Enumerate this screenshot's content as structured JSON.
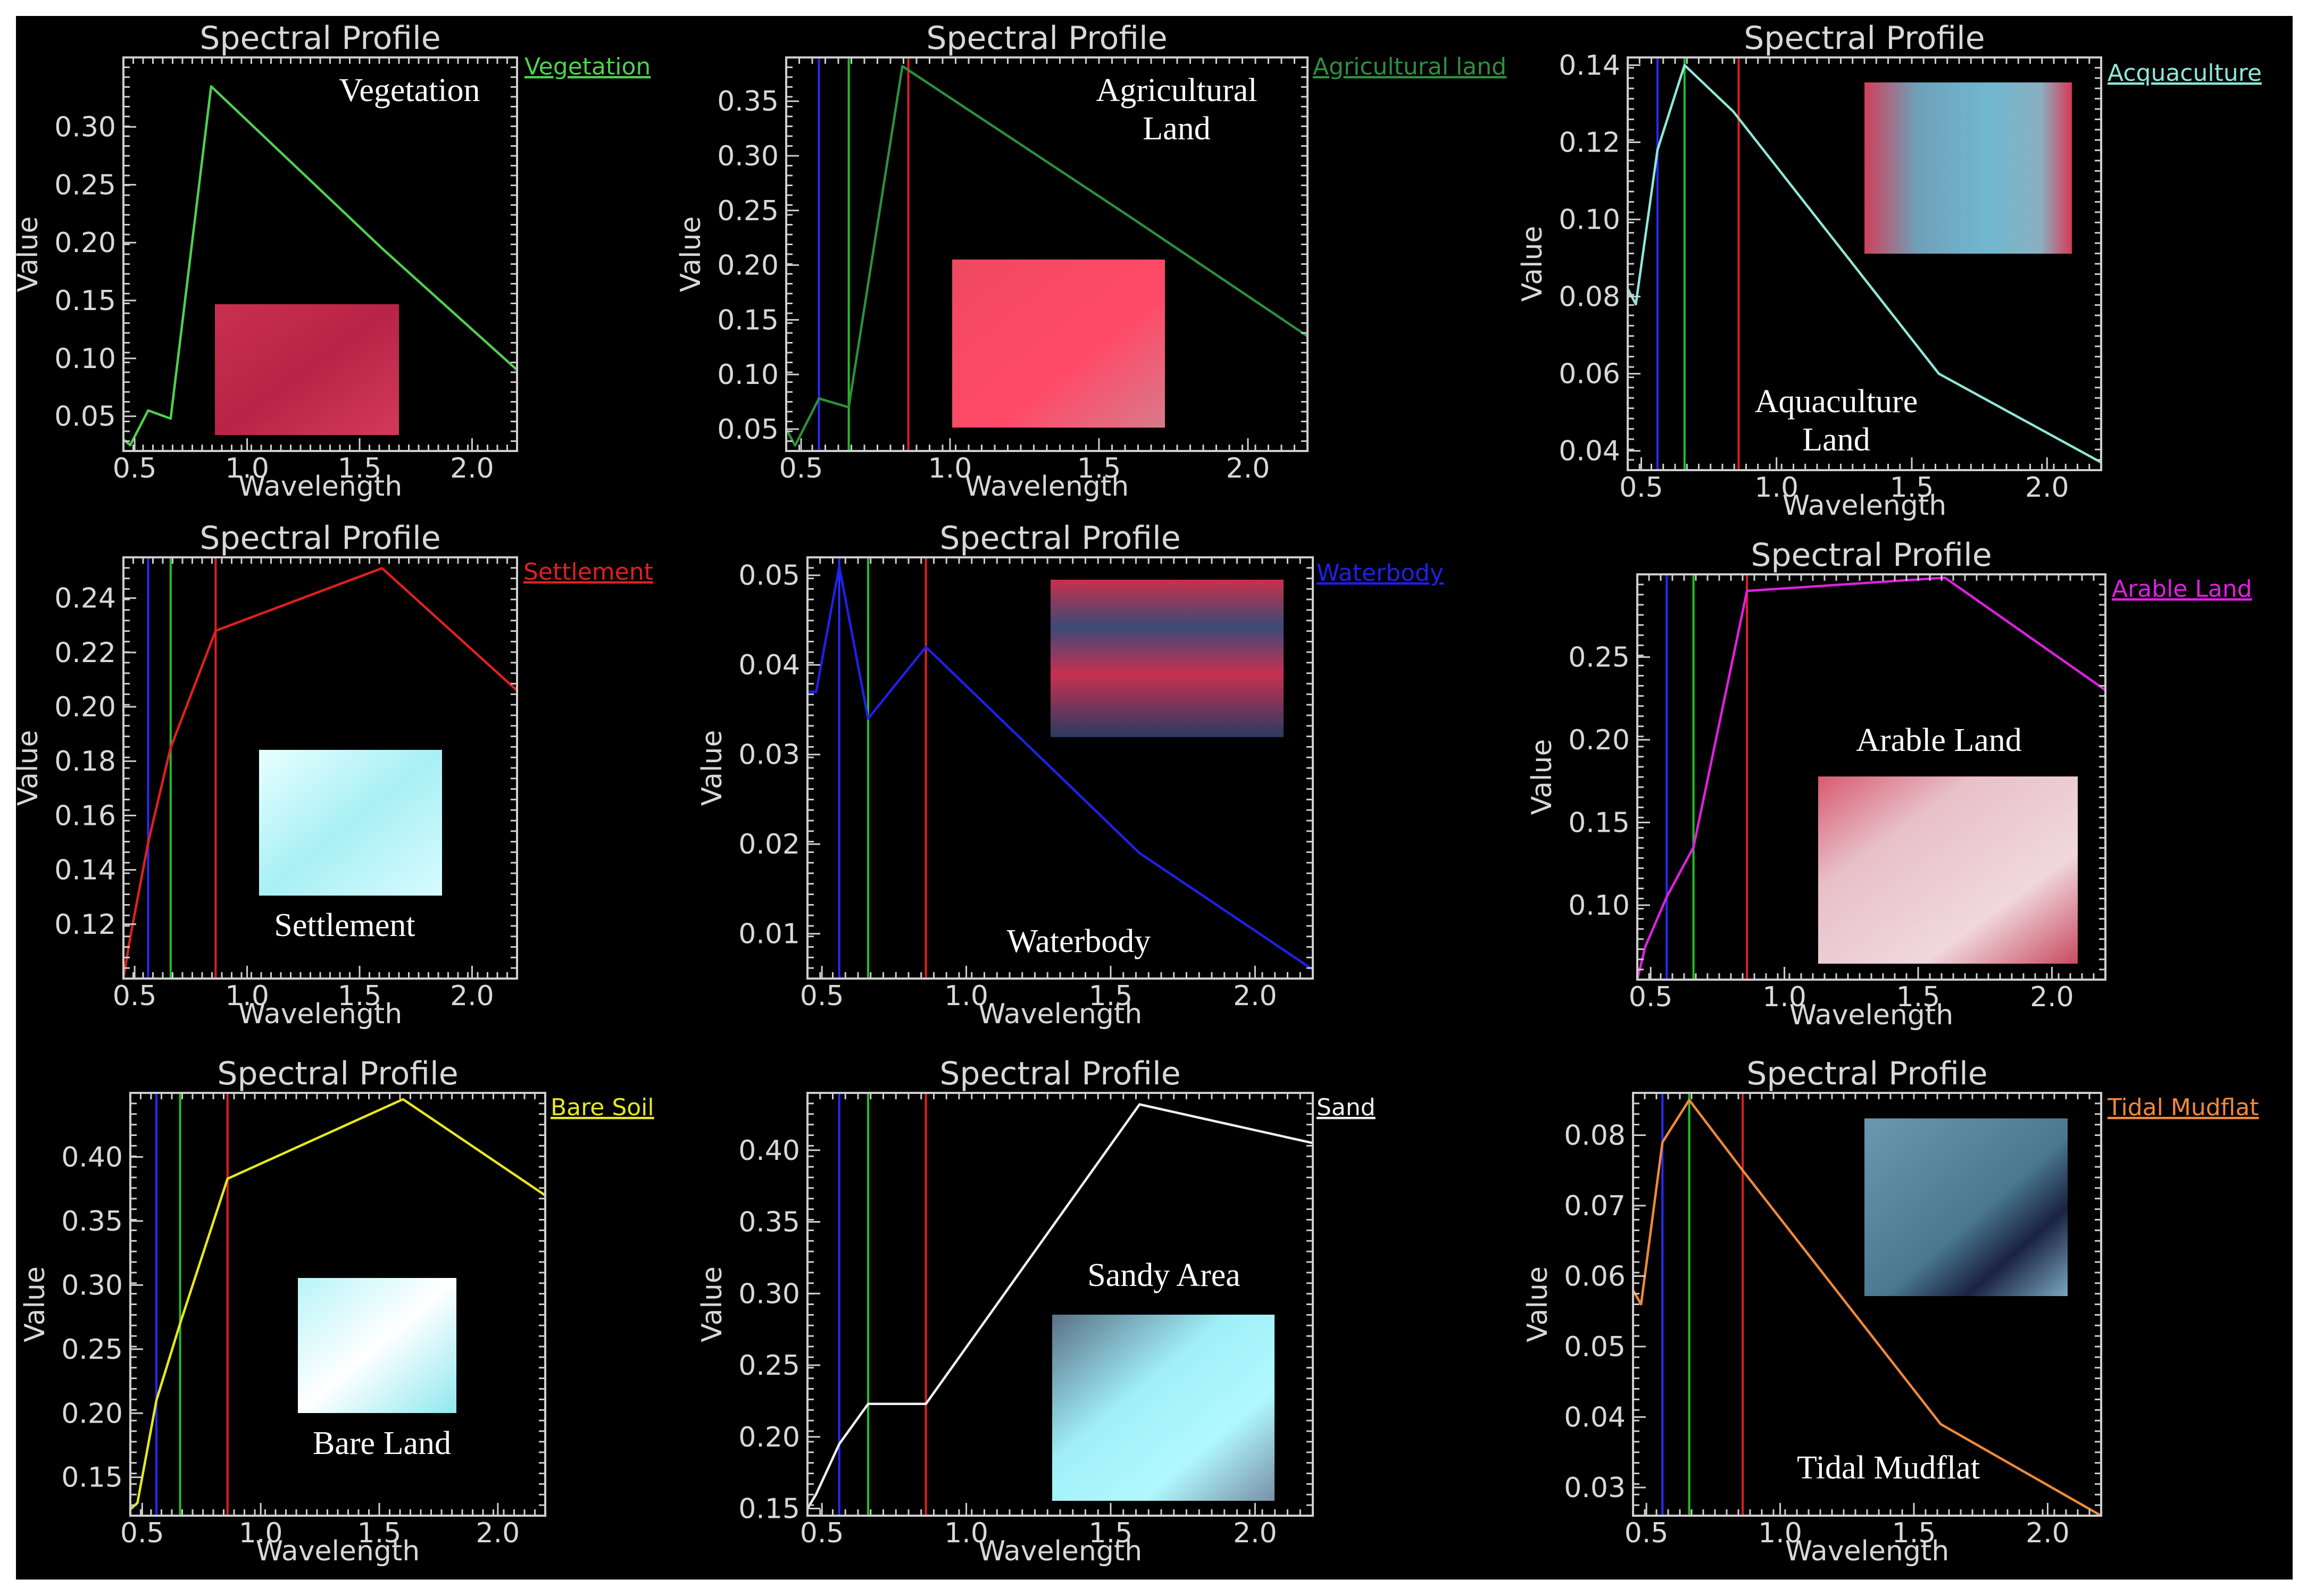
{
  "chart_data": [
    {
      "type": "line",
      "title": "Spectral Profile",
      "xlabel": "Wavelength",
      "ylabel": "Value",
      "xlim": [
        0.45,
        2.2
      ],
      "ylim": [
        0.02,
        0.36
      ],
      "xticks": [
        "0.5",
        "1.0",
        "1.5",
        "2.0"
      ],
      "yticks": [
        "0.05",
        "0.10",
        "0.15",
        "0.20",
        "0.25",
        "0.30"
      ],
      "series": [
        {
          "name": "Vegetation",
          "color": "#4fd14f",
          "x": [
            0.45,
            0.48,
            0.56,
            0.66,
            0.84,
            1.6,
            2.2
          ],
          "y": [
            0.03,
            0.025,
            0.055,
            0.048,
            0.335,
            0.195,
            0.09
          ]
        }
      ],
      "band_lines": [],
      "annotation": [
        "Vegetation"
      ],
      "thumbnail": "red-vegetation-patch"
    },
    {
      "type": "line",
      "title": "Spectral Profile",
      "xlabel": "Wavelength",
      "ylabel": "Value",
      "xlim": [
        0.45,
        2.2
      ],
      "ylim": [
        0.03,
        0.39
      ],
      "xticks": [
        "0.5",
        "1.0",
        "1.5",
        "2.0"
      ],
      "yticks": [
        "0.05",
        "0.10",
        "0.15",
        "0.20",
        "0.25",
        "0.30",
        "0.35"
      ],
      "series": [
        {
          "name": "Agricultural land",
          "color": "#2f8f3f",
          "x": [
            0.45,
            0.48,
            0.56,
            0.66,
            0.84,
            1.6,
            2.2
          ],
          "y": [
            0.05,
            0.035,
            0.078,
            0.07,
            0.382,
            0.245,
            0.135
          ]
        }
      ],
      "band_lines": [
        0.56,
        0.66,
        0.86
      ],
      "annotation": [
        "Agricultural",
        "Land"
      ],
      "thumbnail": "pink-agricultural-patch"
    },
    {
      "type": "line",
      "title": "Spectral Profile",
      "xlabel": "Wavelength",
      "ylabel": "Value",
      "xlim": [
        0.45,
        2.2
      ],
      "ylim": [
        0.035,
        0.142
      ],
      "xticks": [
        "0.5",
        "1.0",
        "1.5",
        "2.0"
      ],
      "yticks": [
        "0.04",
        "0.06",
        "0.08",
        "0.10",
        "0.12",
        "0.14"
      ],
      "series": [
        {
          "name": "Acquaculture",
          "color": "#8fe8d8",
          "x": [
            0.45,
            0.48,
            0.56,
            0.66,
            0.84,
            1.6,
            2.2
          ],
          "y": [
            0.082,
            0.078,
            0.118,
            0.14,
            0.128,
            0.06,
            0.037
          ]
        }
      ],
      "band_lines": [
        0.56,
        0.66,
        0.86
      ],
      "annotation": [
        "Aquaculture",
        "Land"
      ],
      "thumbnail": "aquaculture-patch"
    },
    {
      "type": "line",
      "title": "Spectral Profile",
      "xlabel": "Wavelength",
      "ylabel": "Value",
      "xlim": [
        0.45,
        2.2
      ],
      "ylim": [
        0.1,
        0.255
      ],
      "xticks": [
        "0.5",
        "1.0",
        "1.5",
        "2.0"
      ],
      "yticks": [
        "0.12",
        "0.14",
        "0.16",
        "0.18",
        "0.20",
        "0.22",
        "0.24"
      ],
      "series": [
        {
          "name": "Settlement",
          "color": "#e02020",
          "x": [
            0.45,
            0.48,
            0.56,
            0.66,
            0.86,
            1.6,
            2.2
          ],
          "y": [
            0.1,
            0.115,
            0.15,
            0.185,
            0.228,
            0.251,
            0.206
          ]
        }
      ],
      "band_lines": [
        0.56,
        0.66,
        0.86
      ],
      "annotation": [
        "Settlement"
      ],
      "thumbnail": "settlement-patch"
    },
    {
      "type": "line",
      "title": "Spectral Profile",
      "xlabel": "Wavelength",
      "ylabel": "Value",
      "xlim": [
        0.45,
        2.2
      ],
      "ylim": [
        0.005,
        0.052
      ],
      "xticks": [
        "0.5",
        "1.0",
        "1.5",
        "2.0"
      ],
      "yticks": [
        "0.01",
        "0.02",
        "0.03",
        "0.04",
        "0.05"
      ],
      "series": [
        {
          "name": "Waterbody",
          "color": "#2020e8",
          "x": [
            0.45,
            0.48,
            0.56,
            0.66,
            0.86,
            1.6,
            2.2
          ],
          "y": [
            0.037,
            0.037,
            0.051,
            0.034,
            0.042,
            0.019,
            0.006
          ]
        }
      ],
      "band_lines": [
        0.56,
        0.66,
        0.86
      ],
      "annotation": [
        "Waterbody"
      ],
      "thumbnail": "waterbody-patch"
    },
    {
      "type": "line",
      "title": "Spectral Profile",
      "xlabel": "Wavelength",
      "ylabel": "Value",
      "xlim": [
        0.45,
        2.2
      ],
      "ylim": [
        0.055,
        0.3
      ],
      "xticks": [
        "0.5",
        "1.0",
        "1.5",
        "2.0"
      ],
      "yticks": [
        "0.10",
        "0.15",
        "0.20",
        "0.25"
      ],
      "series": [
        {
          "name": "Arable Land",
          "color": "#e020e0",
          "x": [
            0.45,
            0.48,
            0.56,
            0.66,
            0.86,
            1.6,
            2.2
          ],
          "y": [
            0.055,
            0.075,
            0.105,
            0.135,
            0.29,
            0.298,
            0.23
          ]
        }
      ],
      "band_lines": [
        0.56,
        0.66,
        0.86
      ],
      "annotation": [
        "Arable Land"
      ],
      "thumbnail": "arable-land-patch"
    },
    {
      "type": "line",
      "title": "Spectral Profile",
      "xlabel": "Wavelength",
      "ylabel": "Value",
      "xlim": [
        0.45,
        2.2
      ],
      "ylim": [
        0.12,
        0.45
      ],
      "xticks": [
        "0.5",
        "1.0",
        "1.5",
        "2.0"
      ],
      "yticks": [
        "0.15",
        "0.20",
        "0.25",
        "0.30",
        "0.35",
        "0.40"
      ],
      "series": [
        {
          "name": "Bare Soil",
          "color": "#e8e820",
          "x": [
            0.45,
            0.48,
            0.56,
            0.66,
            0.86,
            1.6,
            2.2
          ],
          "y": [
            0.125,
            0.13,
            0.21,
            0.27,
            0.383,
            0.445,
            0.37
          ]
        }
      ],
      "band_lines": [
        0.56,
        0.66,
        0.86
      ],
      "annotation": [
        "Bare Land"
      ],
      "thumbnail": "bare-land-patch"
    },
    {
      "type": "line",
      "title": "Spectral Profile",
      "xlabel": "Wavelength",
      "ylabel": "Value",
      "xlim": [
        0.45,
        2.2
      ],
      "ylim": [
        0.145,
        0.44
      ],
      "xticks": [
        "0.5",
        "1.0",
        "1.5",
        "2.0"
      ],
      "yticks": [
        "0.15",
        "0.20",
        "0.25",
        "0.30",
        "0.35",
        "0.40"
      ],
      "series": [
        {
          "name": "Sand",
          "color": "#f0f0f0",
          "x": [
            0.45,
            0.48,
            0.56,
            0.66,
            0.86,
            1.6,
            2.2
          ],
          "y": [
            0.15,
            0.16,
            0.195,
            0.223,
            0.223,
            0.432,
            0.405
          ]
        }
      ],
      "band_lines": [
        0.56,
        0.66,
        0.86
      ],
      "annotation": [
        "Sandy Area"
      ],
      "thumbnail": "sandy-area-patch"
    },
    {
      "type": "line",
      "title": "Spectral Profile",
      "xlabel": "Wavelength",
      "ylabel": "Value",
      "xlim": [
        0.45,
        2.2
      ],
      "ylim": [
        0.026,
        0.086
      ],
      "xticks": [
        "0.5",
        "1.0",
        "1.5",
        "2.0"
      ],
      "yticks": [
        "0.03",
        "0.04",
        "0.05",
        "0.06",
        "0.07",
        "0.08"
      ],
      "series": [
        {
          "name": "Tidal Mudflat",
          "color": "#f08a3a",
          "x": [
            0.45,
            0.48,
            0.56,
            0.66,
            0.86,
            1.6,
            2.2
          ],
          "y": [
            0.058,
            0.056,
            0.079,
            0.085,
            0.075,
            0.039,
            0.026
          ]
        }
      ],
      "band_lines": [
        0.56,
        0.66,
        0.86
      ],
      "annotation": [
        "Tidal Mudflat"
      ],
      "thumbnail": "tidal-mudflat-patch"
    }
  ]
}
